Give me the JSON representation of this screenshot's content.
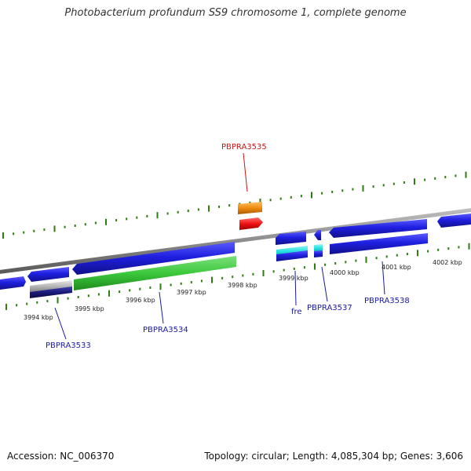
{
  "title": "Photobacterium profundum SS9 chromosome 1, complete genome",
  "footer": {
    "accession": "Accession: NC_006370",
    "stats": "Topology: circular; Length: 4,085,304 bp; Genes: 3,606"
  },
  "colors": {
    "backbone": "#8c8c8c",
    "tick": "#2e7d12",
    "gene_blue": "#1f1fe0",
    "gene_green": "#3cc83c",
    "gene_cyan": "#22dede",
    "gene_orange": "#f08c10",
    "gene_red": "#ee1111",
    "gene_navy": "#1a1a7a",
    "gene_gray": "#b4b4b4",
    "label_blue": "#1a1aa0",
    "label_red": "#c81414"
  },
  "scale_labels": [
    "3994 kbp",
    "3995 kbp",
    "3996 kbp",
    "3997 kbp",
    "3998 kbp",
    "3999 kbp",
    "4000 kbp",
    "4001 kbp",
    "4002 kbp"
  ],
  "gene_labels": [
    "PBPRA3533",
    "PBPRA3534",
    "PBPRA3535",
    "fre",
    "PBPRA3537",
    "PBPRA3538"
  ],
  "gene_label_colors": [
    "label_blue",
    "label_blue",
    "label_red",
    "label_blue",
    "label_blue",
    "label_blue"
  ]
}
